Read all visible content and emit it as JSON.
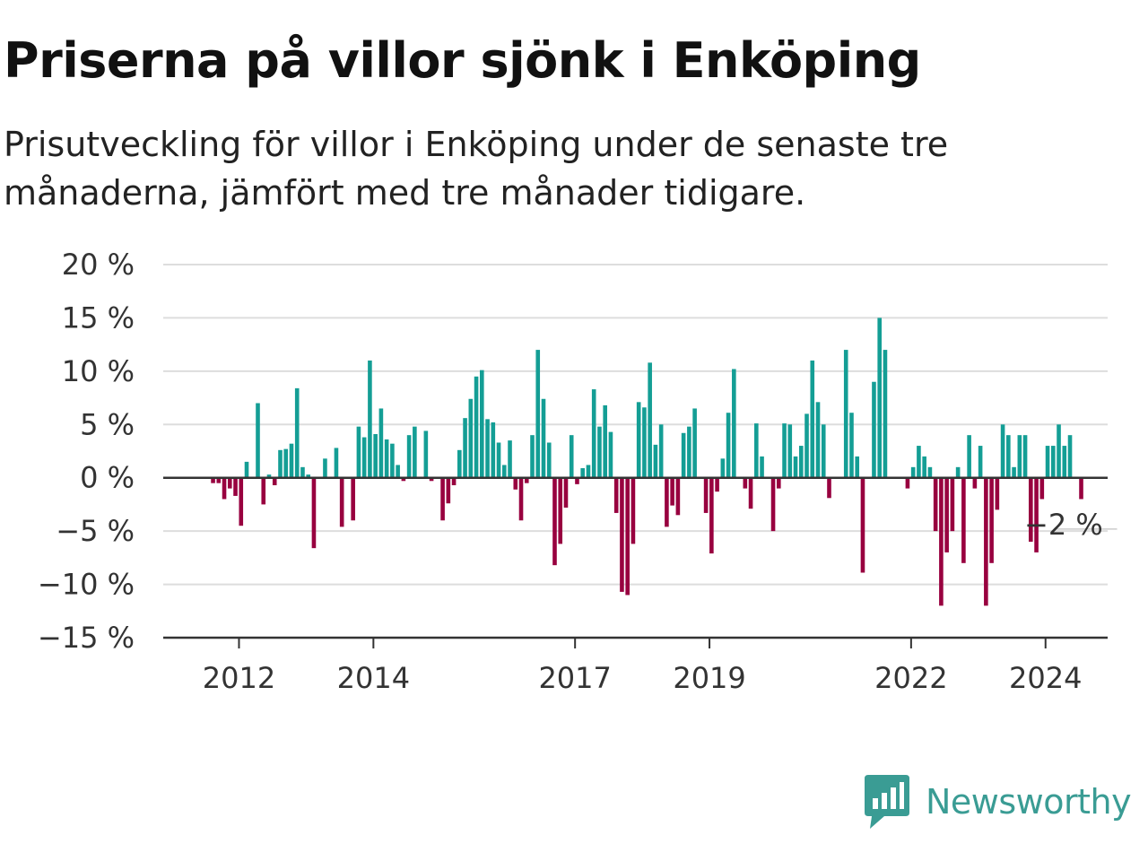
{
  "title": "Priserna på villor sjönk i Enköping",
  "subtitle": "Prisutveckling för villor i Enköping under de senaste tre månaderna, jämfört med tre månader tidigare.",
  "brand": {
    "name": "Newsworthy",
    "color": "#3a9c94"
  },
  "colors": {
    "positive": "#149e95",
    "negative": "#98003f",
    "grid": "#dddddd",
    "axis": "#333333"
  },
  "chart_data": {
    "type": "bar",
    "title": "Priserna på villor sjönk i Enköping",
    "ylim": [
      -15,
      20
    ],
    "y_ticks": [
      "20 %",
      "15 %",
      "10 %",
      "5 %",
      "0 %",
      "−5 %",
      "−10 %",
      "−15 %"
    ],
    "y_tick_values": [
      20,
      15,
      10,
      5,
      0,
      -5,
      -10,
      -15
    ],
    "x_ticks": [
      "2012",
      "2014",
      "2017",
      "2019",
      "2022",
      "2024"
    ],
    "x_tick_years": [
      2012,
      2014,
      2017,
      2019,
      2022,
      2024
    ],
    "x_start": "2011-07",
    "grid": true,
    "last_value_label": "−2 %",
    "values": [
      0,
      -0.5,
      -0.5,
      -2,
      -1,
      -1.7,
      -4.5,
      1.5,
      0,
      7,
      -2.5,
      0.3,
      -0.7,
      2.6,
      2.7,
      3.2,
      8.4,
      1,
      0.3,
      -6.6,
      0,
      1.8,
      0,
      2.8,
      -4.6,
      0,
      -4,
      4.8,
      3.8,
      11,
      4.1,
      6.5,
      3.6,
      3.2,
      1.2,
      -0.3,
      4,
      4.8,
      0,
      4.4,
      -0.3,
      0,
      -4,
      -2.4,
      -0.7,
      2.6,
      5.6,
      7.4,
      9.5,
      10.1,
      5.5,
      5.2,
      3.3,
      1.2,
      3.5,
      -1.1,
      -4,
      -0.5,
      4,
      12,
      7.4,
      3.3,
      -8.2,
      -6.2,
      -2.8,
      4,
      -0.6,
      0.9,
      1.2,
      8.3,
      4.8,
      6.8,
      4.3,
      -3.3,
      -10.7,
      -11,
      -6.2,
      7.1,
      6.6,
      10.8,
      3.1,
      5,
      -4.6,
      -2.6,
      -3.5,
      4.2,
      4.8,
      6.5,
      0,
      -3.3,
      -7.1,
      -1.3,
      1.8,
      6.1,
      10.2,
      0,
      -1,
      -2.9,
      5.1,
      2,
      0,
      -5,
      -1,
      5.1,
      5,
      2,
      3,
      6,
      11,
      7.1,
      5,
      -1.9,
      0,
      0,
      12,
      6.1,
      2,
      -8.9,
      0,
      9,
      15,
      12,
      0,
      0,
      0,
      -1,
      1,
      3,
      2,
      1,
      -5,
      -12,
      -7,
      -5,
      1,
      -8,
      4,
      -1,
      3,
      -12,
      -8,
      -3,
      5,
      4,
      1,
      4,
      4,
      -6,
      -7,
      -2,
      3,
      3,
      5,
      3,
      4,
      0,
      -2
    ]
  }
}
